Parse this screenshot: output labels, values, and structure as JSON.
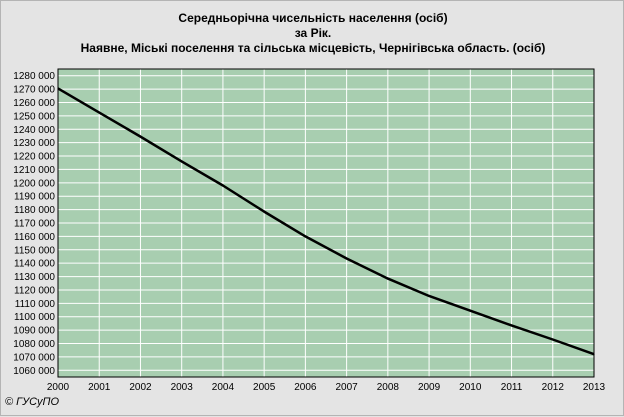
{
  "title": {
    "line1": "Середньорічна чисельність населення (осіб)",
    "line2": "за Рік.",
    "line3": "Наявне, Міські поселення та сільська місцевість, Чернігівська область. (осіб)"
  },
  "copyright": "© ГУСуПО",
  "colors": {
    "plot_bg": "#a8ceb0",
    "grid": "#ffffff",
    "line": "#000000",
    "page_bg": "#e4e4e4"
  },
  "chart_data": {
    "type": "line",
    "title": "Середньорічна чисельність населення (осіб)",
    "subtitle": "Наявне, Міські поселення та сільська місцевість, Чернігівська область. (осіб)",
    "xlabel": "",
    "ylabel": "",
    "grid": true,
    "xlim": [
      2000,
      2013
    ],
    "ylim": [
      1055000,
      1285000
    ],
    "x": [
      2000,
      2001,
      2002,
      2003,
      2004,
      2005,
      2006,
      2007,
      2008,
      2009,
      2010,
      2011,
      2012,
      2013
    ],
    "series": [
      {
        "values": [
          1270500,
          1252500,
          1234500,
          1216000,
          1198000,
          1178500,
          1160000,
          1143500,
          1128500,
          1115500,
          1104500,
          1093500,
          1083000,
          1072000
        ]
      }
    ],
    "y_ticks": [
      1060000,
      1070000,
      1080000,
      1090000,
      1100000,
      1110000,
      1120000,
      1130000,
      1140000,
      1150000,
      1160000,
      1170000,
      1180000,
      1190000,
      1200000,
      1210000,
      1220000,
      1230000,
      1240000,
      1250000,
      1260000,
      1270000,
      1280000
    ],
    "y_tick_labels": [
      "1060 000",
      "1070 000",
      "1080 000",
      "1090 000",
      "1100 000",
      "1110 000",
      "1120 000",
      "1130 000",
      "1140 000",
      "1150 000",
      "1160 000",
      "1170 000",
      "1180 000",
      "1190 000",
      "1200 000",
      "1210 000",
      "1220 000",
      "1230 000",
      "1240 000",
      "1250 000",
      "1260 000",
      "1270 000",
      "1280 000"
    ],
    "x_tick_labels": [
      "2000",
      "2001",
      "2002",
      "2003",
      "2004",
      "2005",
      "2006",
      "2007",
      "2008",
      "2009",
      "2010",
      "2011",
      "2012",
      "2013"
    ]
  }
}
